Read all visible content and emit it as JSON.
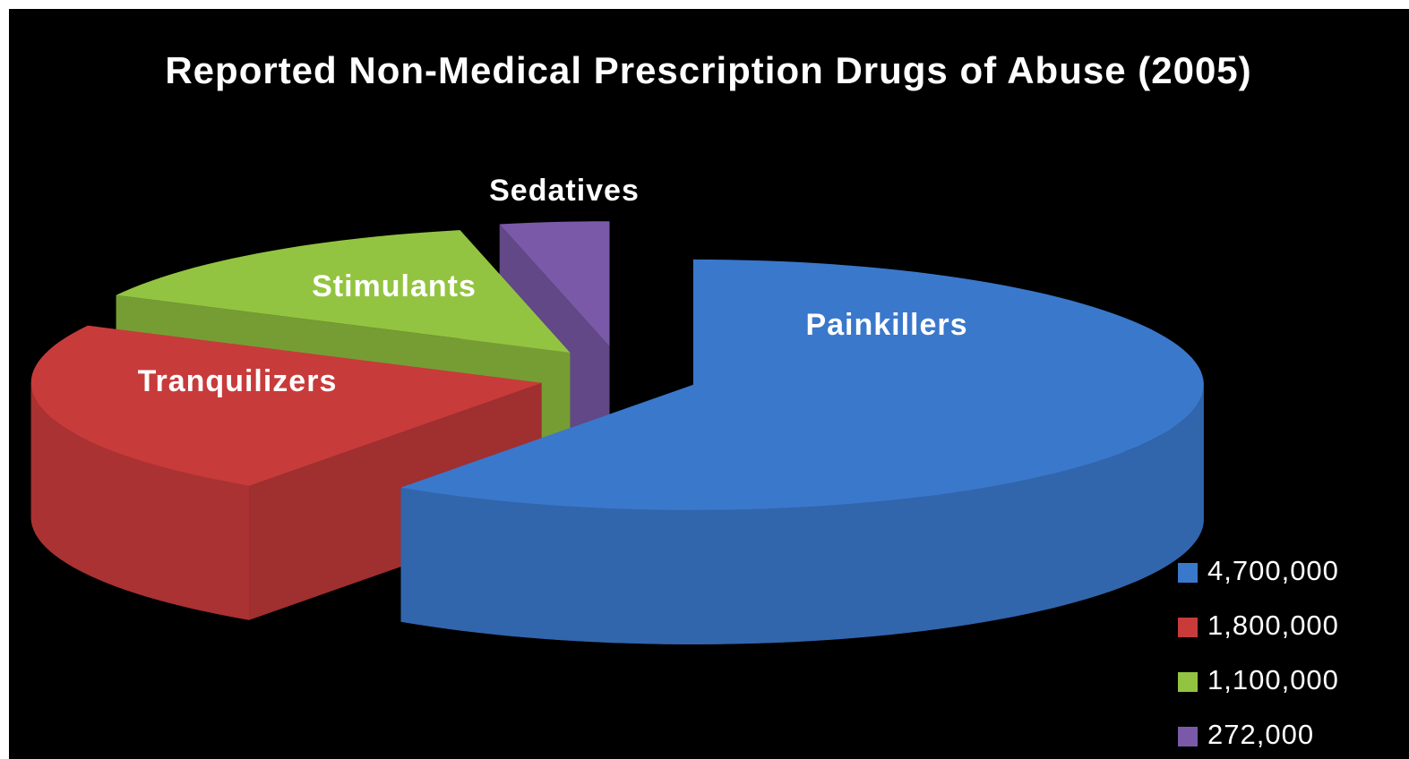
{
  "chart_data": {
    "type": "pie3d",
    "title": "Reported Non-Medical Prescription Drugs of Abuse (2005)",
    "categories": [
      "Painkillers",
      "Tranquilizers",
      "Stimulants",
      "Sedatives"
    ],
    "values": [
      4700000,
      1800000,
      1100000,
      272000
    ],
    "value_labels": [
      "4,700,000",
      "1,800,000",
      "1,100,000",
      "272,000"
    ],
    "colors": [
      "#3a78cc",
      "#c83b3b",
      "#93c441",
      "#7a5aa8"
    ],
    "legend": "bottom-right"
  }
}
